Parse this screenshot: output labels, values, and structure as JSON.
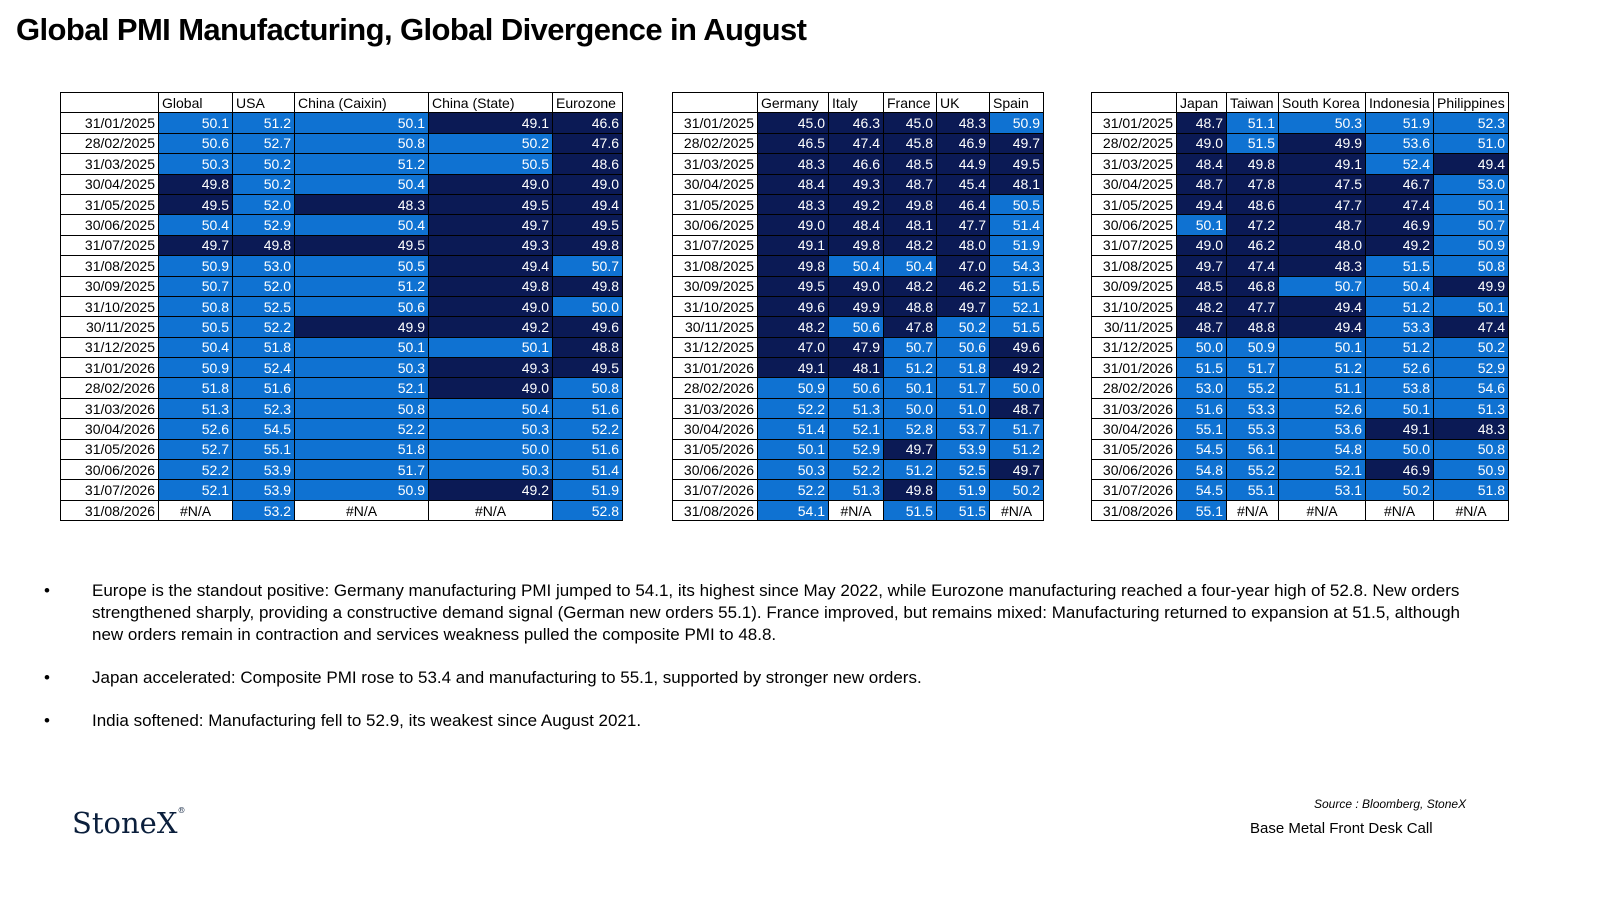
{
  "title": "Global PMI Manufacturing, Global Divergence in August",
  "colors": {
    "dark": "#0b1a55",
    "light": "#0f72d2",
    "header_bg": "#ffffff"
  },
  "tables": [
    {
      "columns": [
        "Global",
        "USA",
        "China (Caixin)",
        "China (State)",
        "Eurozone"
      ],
      "rows": [
        {
          "date": "31/01/2025",
          "values": [
            "50.1",
            "51.2",
            "50.1",
            "49.1",
            "46.6"
          ]
        },
        {
          "date": "28/02/2025",
          "values": [
            "50.6",
            "52.7",
            "50.8",
            "50.2",
            "47.6"
          ]
        },
        {
          "date": "31/03/2025",
          "values": [
            "50.3",
            "50.2",
            "51.2",
            "50.5",
            "48.6"
          ]
        },
        {
          "date": "30/04/2025",
          "values": [
            "49.8",
            "50.2",
            "50.4",
            "49.0",
            "49.0"
          ]
        },
        {
          "date": "31/05/2025",
          "values": [
            "49.5",
            "52.0",
            "48.3",
            "49.5",
            "49.4"
          ]
        },
        {
          "date": "30/06/2025",
          "values": [
            "50.4",
            "52.9",
            "50.4",
            "49.7",
            "49.5"
          ]
        },
        {
          "date": "31/07/2025",
          "values": [
            "49.7",
            "49.8",
            "49.5",
            "49.3",
            "49.8"
          ]
        },
        {
          "date": "31/08/2025",
          "values": [
            "50.9",
            "53.0",
            "50.5",
            "49.4",
            "50.7"
          ]
        },
        {
          "date": "30/09/2025",
          "values": [
            "50.7",
            "52.0",
            "51.2",
            "49.8",
            "49.8"
          ]
        },
        {
          "date": "31/10/2025",
          "values": [
            "50.8",
            "52.5",
            "50.6",
            "49.0",
            "50.0"
          ]
        },
        {
          "date": "30/11/2025",
          "values": [
            "50.5",
            "52.2",
            "49.9",
            "49.2",
            "49.6"
          ]
        },
        {
          "date": "31/12/2025",
          "values": [
            "50.4",
            "51.8",
            "50.1",
            "50.1",
            "48.8"
          ]
        },
        {
          "date": "31/01/2026",
          "values": [
            "50.9",
            "52.4",
            "50.3",
            "49.3",
            "49.5"
          ]
        },
        {
          "date": "28/02/2026",
          "values": [
            "51.8",
            "51.6",
            "52.1",
            "49.0",
            "50.8"
          ]
        },
        {
          "date": "31/03/2026",
          "values": [
            "51.3",
            "52.3",
            "50.8",
            "50.4",
            "51.6"
          ]
        },
        {
          "date": "30/04/2026",
          "values": [
            "52.6",
            "54.5",
            "52.2",
            "50.3",
            "52.2"
          ]
        },
        {
          "date": "31/05/2026",
          "values": [
            "52.7",
            "55.1",
            "51.8",
            "50.0",
            "51.6"
          ]
        },
        {
          "date": "30/06/2026",
          "values": [
            "52.2",
            "53.9",
            "51.7",
            "50.3",
            "51.4"
          ]
        },
        {
          "date": "31/07/2026",
          "values": [
            "52.1",
            "53.9",
            "50.9",
            "49.2",
            "51.9"
          ]
        },
        {
          "date": "31/08/2026",
          "values": [
            "#N/A",
            "53.2",
            "#N/A",
            "#N/A",
            "52.8"
          ]
        }
      ]
    },
    {
      "columns": [
        "Germany",
        "Italy",
        "France",
        "UK",
        "Spain"
      ],
      "rows": [
        {
          "date": "31/01/2025",
          "values": [
            "45.0",
            "46.3",
            "45.0",
            "48.3",
            "50.9"
          ]
        },
        {
          "date": "28/02/2025",
          "values": [
            "46.5",
            "47.4",
            "45.8",
            "46.9",
            "49.7"
          ]
        },
        {
          "date": "31/03/2025",
          "values": [
            "48.3",
            "46.6",
            "48.5",
            "44.9",
            "49.5"
          ]
        },
        {
          "date": "30/04/2025",
          "values": [
            "48.4",
            "49.3",
            "48.7",
            "45.4",
            "48.1"
          ]
        },
        {
          "date": "31/05/2025",
          "values": [
            "48.3",
            "49.2",
            "49.8",
            "46.4",
            "50.5"
          ]
        },
        {
          "date": "30/06/2025",
          "values": [
            "49.0",
            "48.4",
            "48.1",
            "47.7",
            "51.4"
          ]
        },
        {
          "date": "31/07/2025",
          "values": [
            "49.1",
            "49.8",
            "48.2",
            "48.0",
            "51.9"
          ]
        },
        {
          "date": "31/08/2025",
          "values": [
            "49.8",
            "50.4",
            "50.4",
            "47.0",
            "54.3"
          ]
        },
        {
          "date": "30/09/2025",
          "values": [
            "49.5",
            "49.0",
            "48.2",
            "46.2",
            "51.5"
          ]
        },
        {
          "date": "31/10/2025",
          "values": [
            "49.6",
            "49.9",
            "48.8",
            "49.7",
            "52.1"
          ]
        },
        {
          "date": "30/11/2025",
          "values": [
            "48.2",
            "50.6",
            "47.8",
            "50.2",
            "51.5"
          ]
        },
        {
          "date": "31/12/2025",
          "values": [
            "47.0",
            "47.9",
            "50.7",
            "50.6",
            "49.6"
          ]
        },
        {
          "date": "31/01/2026",
          "values": [
            "49.1",
            "48.1",
            "51.2",
            "51.8",
            "49.2"
          ]
        },
        {
          "date": "28/02/2026",
          "values": [
            "50.9",
            "50.6",
            "50.1",
            "51.7",
            "50.0"
          ]
        },
        {
          "date": "31/03/2026",
          "values": [
            "52.2",
            "51.3",
            "50.0",
            "51.0",
            "48.7"
          ]
        },
        {
          "date": "30/04/2026",
          "values": [
            "51.4",
            "52.1",
            "52.8",
            "53.7",
            "51.7"
          ]
        },
        {
          "date": "31/05/2026",
          "values": [
            "50.1",
            "52.9",
            "49.7",
            "53.9",
            "51.2"
          ]
        },
        {
          "date": "30/06/2026",
          "values": [
            "50.3",
            "52.2",
            "51.2",
            "52.5",
            "49.7"
          ]
        },
        {
          "date": "31/07/2026",
          "values": [
            "52.2",
            "51.3",
            "49.8",
            "51.9",
            "50.2"
          ]
        },
        {
          "date": "31/08/2026",
          "values": [
            "54.1",
            "#N/A",
            "51.5",
            "51.5",
            "#N/A"
          ]
        }
      ]
    },
    {
      "columns": [
        "Japan",
        "Taiwan",
        "South Korea",
        "Indonesia",
        "Philippines"
      ],
      "rows": [
        {
          "date": "31/01/2025",
          "values": [
            "48.7",
            "51.1",
            "50.3",
            "51.9",
            "52.3"
          ]
        },
        {
          "date": "28/02/2025",
          "values": [
            "49.0",
            "51.5",
            "49.9",
            "53.6",
            "51.0"
          ]
        },
        {
          "date": "31/03/2025",
          "values": [
            "48.4",
            "49.8",
            "49.1",
            "52.4",
            "49.4"
          ]
        },
        {
          "date": "30/04/2025",
          "values": [
            "48.7",
            "47.8",
            "47.5",
            "46.7",
            "53.0"
          ]
        },
        {
          "date": "31/05/2025",
          "values": [
            "49.4",
            "48.6",
            "47.7",
            "47.4",
            "50.1"
          ]
        },
        {
          "date": "30/06/2025",
          "values": [
            "50.1",
            "47.2",
            "48.7",
            "46.9",
            "50.7"
          ]
        },
        {
          "date": "31/07/2025",
          "values": [
            "49.0",
            "46.2",
            "48.0",
            "49.2",
            "50.9"
          ]
        },
        {
          "date": "31/08/2025",
          "values": [
            "49.7",
            "47.4",
            "48.3",
            "51.5",
            "50.8"
          ]
        },
        {
          "date": "30/09/2025",
          "values": [
            "48.5",
            "46.8",
            "50.7",
            "50.4",
            "49.9"
          ]
        },
        {
          "date": "31/10/2025",
          "values": [
            "48.2",
            "47.7",
            "49.4",
            "51.2",
            "50.1"
          ]
        },
        {
          "date": "30/11/2025",
          "values": [
            "48.7",
            "48.8",
            "49.4",
            "53.3",
            "47.4"
          ]
        },
        {
          "date": "31/12/2025",
          "values": [
            "50.0",
            "50.9",
            "50.1",
            "51.2",
            "50.2"
          ]
        },
        {
          "date": "31/01/2026",
          "values": [
            "51.5",
            "51.7",
            "51.2",
            "52.6",
            "52.9"
          ]
        },
        {
          "date": "28/02/2026",
          "values": [
            "53.0",
            "55.2",
            "51.1",
            "53.8",
            "54.6"
          ]
        },
        {
          "date": "31/03/2026",
          "values": [
            "51.6",
            "53.3",
            "52.6",
            "50.1",
            "51.3"
          ]
        },
        {
          "date": "30/04/2026",
          "values": [
            "55.1",
            "55.3",
            "53.6",
            "49.1",
            "48.3"
          ]
        },
        {
          "date": "31/05/2026",
          "values": [
            "54.5",
            "56.1",
            "54.8",
            "50.0",
            "50.8"
          ]
        },
        {
          "date": "30/06/2026",
          "values": [
            "54.8",
            "55.2",
            "52.1",
            "46.9",
            "50.9"
          ]
        },
        {
          "date": "31/07/2026",
          "values": [
            "54.5",
            "55.1",
            "53.1",
            "50.2",
            "51.8"
          ]
        },
        {
          "date": "31/08/2026",
          "values": [
            "55.1",
            "#N/A",
            "#N/A",
            "#N/A",
            "#N/A"
          ]
        }
      ]
    }
  ],
  "bullets": [
    {
      "marker": "•",
      "text": "Europe is the standout positive: Germany manufacturing PMI jumped to 54.1, its highest since May 2022, while Eurozone manufacturing reached a four-year high of 52.8. New orders strengthened sharply, providing a constructive demand signal (German new orders  55.1). France improved, but remains mixed: Manufacturing returned to expansion at 51.5, although new orders remain in contraction and services weakness pulled the composite PMI to 48.8."
    },
    {
      "marker": "•",
      "text": "Japan accelerated: Composite PMI rose to 53.4 and manufacturing to 55.1, supported by stronger new orders."
    },
    {
      "marker": "•",
      "text": "India softened: Manufacturing fell to 52.9, its weakest since August 2021."
    }
  ],
  "logo": {
    "name": "StoneX",
    "mark": "®"
  },
  "source": "Source : Bloomberg, StoneX",
  "footer": "Base Metal Front Desk Call"
}
